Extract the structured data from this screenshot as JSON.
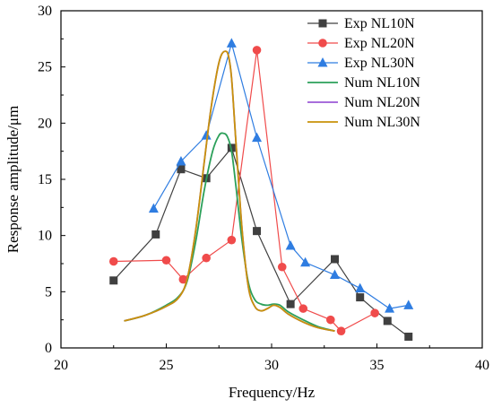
{
  "chart_data": {
    "type": "line",
    "xlabel": "Frequency/Hz",
    "ylabel": "Response amplitude/μm",
    "xlim": [
      20,
      40
    ],
    "ylim": [
      0,
      30
    ],
    "xticks": [
      20,
      25,
      30,
      35,
      40
    ],
    "yticks": [
      0,
      5,
      10,
      15,
      20,
      25,
      30
    ],
    "grid": false,
    "legend_position": "top-right",
    "series": [
      {
        "name": "Exp NL10N",
        "kind": "experimental",
        "marker": "square",
        "color": "#404040",
        "x": [
          22.5,
          24.5,
          25.7,
          26.9,
          28.1,
          29.3,
          30.9,
          33.0,
          34.2,
          35.5,
          36.5
        ],
        "y": [
          6.0,
          10.1,
          15.9,
          15.1,
          17.8,
          10.4,
          3.9,
          7.9,
          4.5,
          2.4,
          1.0
        ]
      },
      {
        "name": "Exp NL20N",
        "kind": "experimental",
        "marker": "circle",
        "color": "#f04b4b",
        "x": [
          22.5,
          25.0,
          25.8,
          26.9,
          28.1,
          29.3,
          30.5,
          31.5,
          32.8,
          33.3,
          34.9
        ],
        "y": [
          7.7,
          7.8,
          6.1,
          8.0,
          9.6,
          26.5,
          7.2,
          3.5,
          2.5,
          1.5,
          3.1
        ]
      },
      {
        "name": "Exp NL30N",
        "kind": "experimental",
        "marker": "triangle",
        "color": "#2f7de1",
        "x": [
          24.4,
          25.7,
          26.9,
          28.1,
          29.3,
          30.9,
          31.6,
          33.0,
          34.2,
          35.6,
          36.5
        ],
        "y": [
          12.4,
          16.6,
          18.9,
          27.1,
          18.7,
          9.1,
          7.6,
          6.5,
          5.3,
          3.5,
          3.8
        ]
      },
      {
        "name": "Num NL10N",
        "kind": "numerical",
        "color": "#2ca05a",
        "x": [
          23.0,
          24.0,
          25.0,
          25.6,
          26.0,
          26.4,
          26.8,
          27.2,
          27.5,
          27.7,
          27.9,
          28.1,
          28.3,
          28.6,
          28.9,
          29.2,
          29.5,
          29.8,
          30.1,
          30.4,
          30.8,
          31.5,
          32.2,
          33.0
        ],
        "y": [
          2.4,
          2.9,
          3.8,
          4.6,
          6.0,
          9.5,
          14.0,
          17.5,
          18.9,
          19.1,
          18.8,
          17.5,
          14.5,
          9.5,
          5.8,
          4.3,
          3.9,
          3.8,
          3.9,
          3.8,
          3.2,
          2.5,
          1.9,
          1.5
        ]
      },
      {
        "name": "Num NL20N",
        "kind": "numerical",
        "color": "#9b59d6",
        "x": [
          23.0,
          24.0,
          25.0,
          25.6,
          26.0,
          26.4,
          26.8,
          27.1,
          27.4,
          27.6,
          27.8,
          27.95,
          28.1,
          28.3,
          28.6,
          28.9,
          29.2,
          29.5,
          29.8,
          30.1,
          30.4,
          30.8,
          31.5,
          32.2,
          33.0
        ],
        "y": [
          2.4,
          2.9,
          3.7,
          4.5,
          6.2,
          10.5,
          16.5,
          21.0,
          24.5,
          26.0,
          26.4,
          26.0,
          24.0,
          18.5,
          10.5,
          5.4,
          3.7,
          3.3,
          3.5,
          3.8,
          3.6,
          3.0,
          2.3,
          1.8,
          1.5
        ]
      },
      {
        "name": "Num NL30N",
        "kind": "numerical",
        "color": "#c8920a",
        "x": [
          23.0,
          24.0,
          25.0,
          25.6,
          26.0,
          26.4,
          26.8,
          27.1,
          27.4,
          27.6,
          27.8,
          27.95,
          28.1,
          28.3,
          28.6,
          28.9,
          29.2,
          29.5,
          29.8,
          30.1,
          30.4,
          30.8,
          31.5,
          32.2,
          33.0
        ],
        "y": [
          2.4,
          2.9,
          3.7,
          4.5,
          6.2,
          10.5,
          16.5,
          21.0,
          24.5,
          26.0,
          26.4,
          26.0,
          24.0,
          18.5,
          10.5,
          5.4,
          3.7,
          3.3,
          3.5,
          3.8,
          3.6,
          3.0,
          2.3,
          1.8,
          1.5
        ]
      }
    ]
  }
}
